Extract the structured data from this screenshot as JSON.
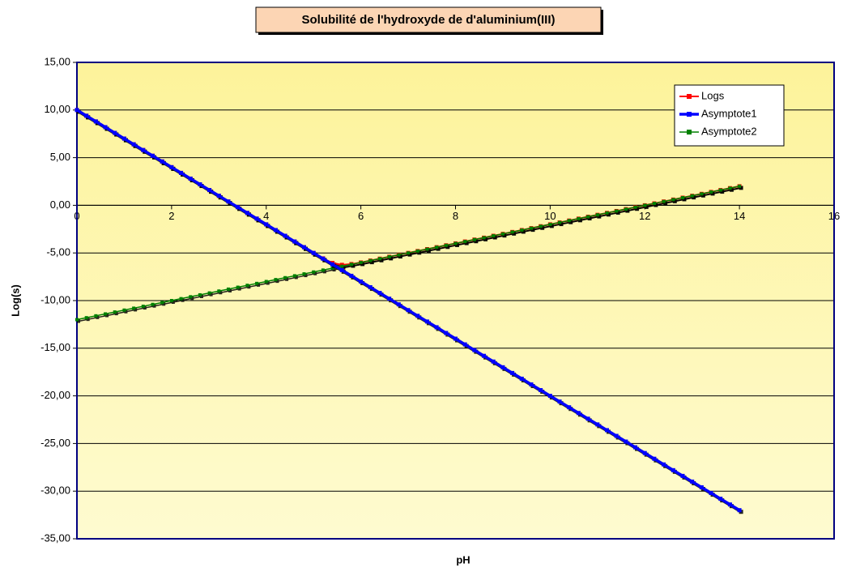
{
  "chart_data": {
    "type": "line",
    "title": "Solubilité de l'hydroxyde de d'aluminium(III)",
    "x_label": "pH",
    "y_label": "Log(s)",
    "x": [
      0,
      0.2,
      0.4,
      0.6,
      0.8,
      1,
      1.2,
      1.4,
      1.6,
      1.8,
      2,
      2.2,
      2.4,
      2.6,
      2.8,
      3,
      3.2,
      3.4,
      3.6,
      3.8,
      4,
      4.2,
      4.4,
      4.6,
      4.8,
      5,
      5.2,
      5.4,
      5.6,
      5.8,
      6,
      6.2,
      6.4,
      6.6,
      6.8,
      7,
      7.2,
      7.4,
      7.6,
      7.8,
      8,
      8.2,
      8.4,
      8.6,
      8.8,
      9,
      9.2,
      9.4,
      9.6,
      9.8,
      10,
      10.2,
      10.4,
      10.6,
      10.8,
      11,
      11.2,
      11.4,
      11.6,
      11.8,
      12,
      12.2,
      12.4,
      12.6,
      12.8,
      13,
      13.2,
      13.4,
      13.6,
      13.8,
      14
    ],
    "series": [
      {
        "name": "Logs",
        "color": "#ff0000",
        "values": [
          10,
          9.4,
          8.8,
          8.2,
          7.6,
          7,
          6.4,
          5.8,
          5.2,
          4.6,
          4,
          3.4,
          2.8,
          2.2,
          1.6,
          1,
          0.4,
          -0.2,
          -0.8,
          -1.4,
          -2,
          -2.6,
          -3.2,
          -3.8,
          -4.4,
          -5,
          -5.57,
          -6.05,
          -6.25,
          -6.17,
          -6,
          -5.8,
          -5.6,
          -5.4,
          -5.2,
          -5,
          -4.8,
          -4.6,
          -4.4,
          -4.2,
          -4,
          -3.8,
          -3.6,
          -3.4,
          -3.2,
          -3,
          -2.8,
          -2.6,
          -2.4,
          -2.2,
          -2,
          -1.8,
          -1.6,
          -1.4,
          -1.2,
          -1,
          -0.8,
          -0.6,
          -0.4,
          -0.2,
          0,
          0.2,
          0.4,
          0.6,
          0.8,
          1,
          1.2,
          1.4,
          1.6,
          1.8,
          2
        ]
      },
      {
        "name": "Asymptote1",
        "color": "#0000ff",
        "values": [
          10,
          9.4,
          8.8,
          8.2,
          7.6,
          7,
          6.4,
          5.8,
          5.2,
          4.6,
          4,
          3.4,
          2.8,
          2.2,
          1.6,
          1,
          0.4,
          -0.2,
          -0.8,
          -1.4,
          -2,
          -2.6,
          -3.2,
          -3.8,
          -4.4,
          -5,
          -5.6,
          -6.2,
          -6.8,
          -7.4,
          -8,
          -8.6,
          -9.2,
          -9.8,
          -10.4,
          -11,
          -11.6,
          -12.2,
          -12.8,
          -13.4,
          -14,
          -14.6,
          -15.2,
          -15.8,
          -16.4,
          -17,
          -17.6,
          -18.2,
          -18.8,
          -19.4,
          -20,
          -20.6,
          -21.2,
          -21.8,
          -22.4,
          -23,
          -23.6,
          -24.2,
          -24.8,
          -25.4,
          -26,
          -26.6,
          -27.2,
          -27.8,
          -28.4,
          -29,
          -29.6,
          -30.2,
          -30.8,
          -31.4,
          -32
        ]
      },
      {
        "name": "Asymptote2",
        "color": "#008000",
        "values": [
          -12,
          -11.8,
          -11.6,
          -11.4,
          -11.2,
          -11,
          -10.8,
          -10.6,
          -10.4,
          -10.2,
          -10,
          -9.8,
          -9.6,
          -9.4,
          -9.2,
          -9,
          -8.8,
          -8.6,
          -8.4,
          -8.2,
          -8,
          -7.8,
          -7.6,
          -7.4,
          -7.2,
          -7,
          -6.8,
          -6.6,
          -6.4,
          -6.2,
          -6,
          -5.8,
          -5.6,
          -5.4,
          -5.2,
          -5,
          -4.8,
          -4.6,
          -4.4,
          -4.2,
          -4,
          -3.8,
          -3.6,
          -3.4,
          -3.2,
          -3,
          -2.8,
          -2.6,
          -2.4,
          -2.2,
          -2,
          -1.8,
          -1.6,
          -1.4,
          -1.2,
          -1,
          -0.8,
          -0.6,
          -0.4,
          -0.2,
          0,
          0.2,
          0.4,
          0.6,
          0.8,
          1,
          1.2,
          1.4,
          1.6,
          1.8,
          2
        ]
      }
    ],
    "xlim": [
      0,
      16
    ],
    "xticks": [
      0,
      2,
      4,
      6,
      8,
      10,
      12,
      14,
      16
    ],
    "ylim": [
      -35,
      15
    ],
    "yticks": [
      {
        "value": -35,
        "label": "-35,00"
      },
      {
        "value": -30,
        "label": "-30,00"
      },
      {
        "value": -25,
        "label": "-25,00"
      },
      {
        "value": -20,
        "label": "-20,00"
      },
      {
        "value": -15,
        "label": "-15,00"
      },
      {
        "value": -10,
        "label": "-10,00"
      },
      {
        "value": -5,
        "label": "-5,00"
      },
      {
        "value": 0,
        "label": "0,00"
      },
      {
        "value": 5,
        "label": "5,00"
      },
      {
        "value": 10,
        "label": "10,00"
      },
      {
        "value": 15,
        "label": "15,00"
      }
    ],
    "grid": true,
    "legend": "upper right"
  }
}
